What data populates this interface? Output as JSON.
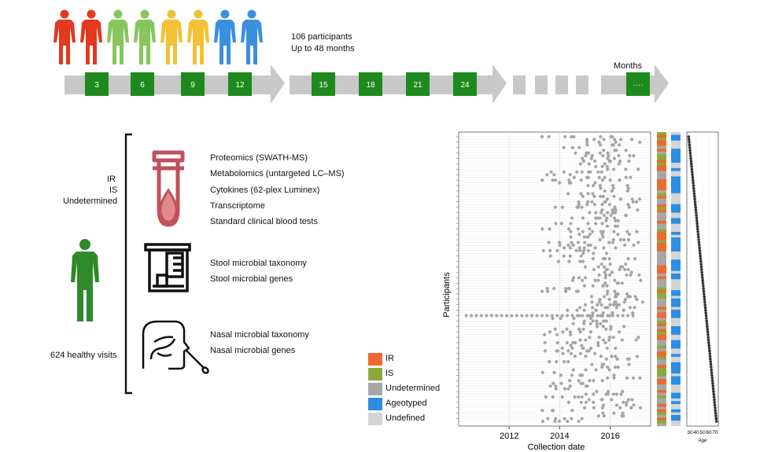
{
  "people": {
    "colors": [
      "#e2391f",
      "#e2391f",
      "#86c65a",
      "#86c65a",
      "#f2c136",
      "#f2c136",
      "#3b8fe0",
      "#3b8fe0"
    ]
  },
  "timeline": {
    "header_line1": "106 participants",
    "header_line2": "Up to 48 months",
    "months_label": "Months",
    "markers": [
      "3",
      "6",
      "9",
      "12",
      "15",
      "18",
      "21",
      "24",
      "····"
    ],
    "colors": {
      "arrow": "#c8c8c8",
      "marker": "#1e8a1e"
    }
  },
  "left_panel": {
    "groups": [
      "IR",
      "IS",
      "Undetermined"
    ],
    "visits": "624 healthy visits",
    "person_color": "#2f8a2a"
  },
  "assays": {
    "blood": [
      "Proteomics (SWATH-MS)",
      "Metabolomics (untargeted LC–MS)",
      "Cytokines (62-plex Luminex)",
      "Transcriptome",
      "Standard clinical blood tests"
    ],
    "stool": [
      "Stool microbial taxonomy",
      "Stool microbial genes"
    ],
    "nasal": [
      "Nasal microbial taxonomy",
      "Nasal microbial genes"
    ],
    "icons": [
      "blood-tube-icon",
      "stool-sample-icon",
      "nasal-swab-icon"
    ]
  },
  "legend": [
    {
      "label": "IR",
      "color": "#ec6a2e"
    },
    {
      "label": "IS",
      "color": "#8aab3c"
    },
    {
      "label": "Undetermined",
      "color": "#a7a7a7"
    },
    {
      "label": "Ageotyped",
      "color": "#2b8de3"
    },
    {
      "label": "Undefined",
      "color": "#d4d4d4"
    }
  ],
  "chart_data": {
    "type": "scatter",
    "xlabel": "Collection date",
    "ylabel": "Participants",
    "xticks": [
      "2012",
      "2014",
      "2016"
    ],
    "xlim": [
      2010.0,
      2017.6
    ],
    "participants": 106,
    "age_axis": {
      "label": "Age",
      "ticks": [
        "30",
        "40",
        "50",
        "60",
        "70"
      ],
      "xlim": [
        25,
        75
      ],
      "range": [
        28,
        72
      ]
    }
  }
}
